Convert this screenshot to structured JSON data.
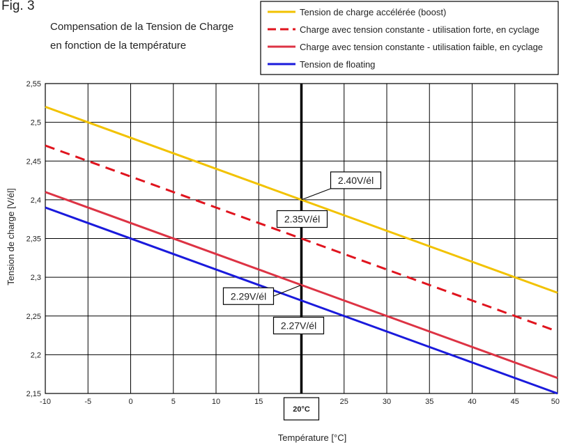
{
  "figure": {
    "label": "Fig. 3",
    "subtitle_line1": "Compensation de la Tension de Charge",
    "subtitle_line2": "en fonction de la température"
  },
  "colors": {
    "boost": "#f2c200",
    "strong": "#e0141e",
    "weak": "#dd3344",
    "floating": "#1a1adc",
    "grid": "#000000"
  },
  "chart_data": {
    "type": "line",
    "title": "",
    "xlabel": "Température [°C]",
    "ylabel": "Tension de charge [V/él]",
    "xlim": [
      -10,
      50
    ],
    "ylim": [
      2.15,
      2.55
    ],
    "x_ticks": [
      "-10",
      "-5",
      "0",
      "5",
      "10",
      "15",
      "20°C",
      "25",
      "30",
      "35",
      "40",
      "45",
      "50"
    ],
    "y_ticks": [
      "2,55",
      "2,5",
      "2,45",
      "2,4",
      "2,35",
      "2,3",
      "2,25",
      "2,2",
      "2,15"
    ],
    "x_tick_values": [
      -10,
      -5,
      0,
      5,
      10,
      15,
      20,
      25,
      30,
      35,
      40,
      45,
      50
    ],
    "y_tick_values": [
      2.55,
      2.5,
      2.45,
      2.4,
      2.35,
      2.3,
      2.25,
      2.2,
      2.15
    ],
    "grid": true,
    "legend_position": "top-right",
    "reference_line_x": 20,
    "series": [
      {
        "name": "Tension de charge accélérée (boost)",
        "key": "boost",
        "dash": false,
        "x": [
          -10,
          50
        ],
        "y": [
          2.52,
          2.28
        ]
      },
      {
        "name": "Charge avec tension constante - utilisation forte, en cyclage",
        "key": "strong",
        "dash": true,
        "x": [
          -10,
          50
        ],
        "y": [
          2.47,
          2.23
        ]
      },
      {
        "name": "Charge avec tension constante - utilisation faible, en cyclage",
        "key": "weak",
        "dash": false,
        "x": [
          -10,
          50
        ],
        "y": [
          2.41,
          2.17
        ]
      },
      {
        "name": "Tension de floating",
        "key": "floating",
        "dash": false,
        "x": [
          -10,
          50
        ],
        "y": [
          2.39,
          2.15
        ]
      }
    ],
    "annotations": [
      {
        "text": "2.40V/él",
        "x": 20,
        "y": 2.4
      },
      {
        "text": "2.35V/él",
        "x": 20,
        "y": 2.35
      },
      {
        "text": "2.29V/él",
        "x": 20,
        "y": 2.29
      },
      {
        "text": "2.27V/él",
        "x": 20,
        "y": 2.27
      }
    ]
  }
}
